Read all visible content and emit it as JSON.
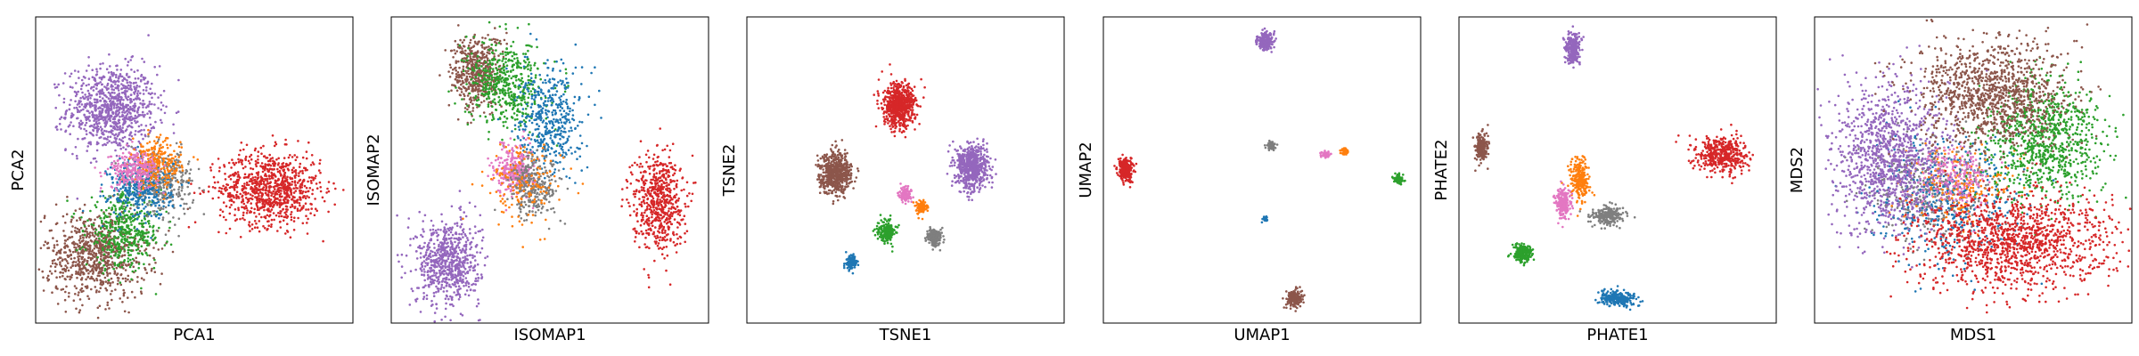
{
  "figure": {
    "type": "scatter-grid",
    "note_colors": "tab10"
  },
  "cluster_colors": {
    "blue": "#1f77b4",
    "orange": "#ff7f0e",
    "green": "#2ca02c",
    "red": "#d62728",
    "purple": "#9467bd",
    "brown": "#8c564b",
    "pink": "#e377c2",
    "gray": "#7f7f7f"
  },
  "chart_data": [
    {
      "type": "scatter",
      "title": "",
      "xlabel": "PCA1",
      "ylabel": "PCA2",
      "xlim": [
        0,
        1
      ],
      "ylim": [
        0,
        1
      ],
      "ticks": "none",
      "series": [
        {
          "color_key": "purple",
          "clusters": [
            {
              "cx": 0.24,
              "cy": 0.7,
              "sx": 0.07,
              "sy": 0.07,
              "n": 900
            }
          ]
        },
        {
          "color_key": "red",
          "clusters": [
            {
              "cx": 0.74,
              "cy": 0.44,
              "sx": 0.08,
              "sy": 0.06,
              "n": 900
            }
          ]
        },
        {
          "color_key": "brown",
          "clusters": [
            {
              "cx": 0.19,
              "cy": 0.22,
              "sx": 0.08,
              "sy": 0.07,
              "n": 800
            }
          ]
        },
        {
          "color_key": "green",
          "clusters": [
            {
              "cx": 0.28,
              "cy": 0.3,
              "sx": 0.06,
              "sy": 0.06,
              "n": 450
            }
          ]
        },
        {
          "color_key": "gray",
          "clusters": [
            {
              "cx": 0.4,
              "cy": 0.46,
              "sx": 0.05,
              "sy": 0.05,
              "n": 350
            }
          ]
        },
        {
          "color_key": "blue",
          "clusters": [
            {
              "cx": 0.33,
              "cy": 0.44,
              "sx": 0.05,
              "sy": 0.05,
              "n": 350
            }
          ]
        },
        {
          "color_key": "orange",
          "clusters": [
            {
              "cx": 0.38,
              "cy": 0.52,
              "sx": 0.04,
              "sy": 0.04,
              "n": 250
            }
          ]
        },
        {
          "color_key": "pink",
          "clusters": [
            {
              "cx": 0.31,
              "cy": 0.5,
              "sx": 0.04,
              "sy": 0.03,
              "n": 250
            }
          ]
        }
      ]
    },
    {
      "type": "scatter",
      "title": "",
      "xlabel": "ISOMAP1",
      "ylabel": "ISOMAP2",
      "xlim": [
        0,
        1
      ],
      "ylim": [
        0,
        1
      ],
      "ticks": "none",
      "series": [
        {
          "color_key": "purple",
          "clusters": [
            {
              "cx": 0.18,
              "cy": 0.2,
              "sx": 0.05,
              "sy": 0.07,
              "n": 700
            }
          ]
        },
        {
          "color_key": "red",
          "clusters": [
            {
              "cx": 0.84,
              "cy": 0.4,
              "sx": 0.04,
              "sy": 0.08,
              "n": 600
            }
          ]
        },
        {
          "color_key": "brown",
          "clusters": [
            {
              "cx": 0.27,
              "cy": 0.82,
              "sx": 0.04,
              "sy": 0.06,
              "n": 500
            }
          ]
        },
        {
          "color_key": "green",
          "clusters": [
            {
              "cx": 0.36,
              "cy": 0.78,
              "sx": 0.06,
              "sy": 0.07,
              "n": 500
            }
          ]
        },
        {
          "color_key": "blue",
          "clusters": [
            {
              "cx": 0.5,
              "cy": 0.66,
              "sx": 0.05,
              "sy": 0.09,
              "n": 450
            }
          ]
        },
        {
          "color_key": "pink",
          "clusters": [
            {
              "cx": 0.39,
              "cy": 0.5,
              "sx": 0.03,
              "sy": 0.04,
              "n": 300
            }
          ]
        },
        {
          "color_key": "gray",
          "clusters": [
            {
              "cx": 0.45,
              "cy": 0.45,
              "sx": 0.04,
              "sy": 0.05,
              "n": 300
            }
          ]
        },
        {
          "color_key": "orange",
          "clusters": [
            {
              "cx": 0.42,
              "cy": 0.45,
              "sx": 0.06,
              "sy": 0.07,
              "n": 150
            }
          ]
        }
      ]
    },
    {
      "type": "scatter",
      "title": "",
      "xlabel": "TSNE1",
      "ylabel": "TSNE2",
      "xlim": [
        0,
        1
      ],
      "ylim": [
        0,
        1
      ],
      "ticks": "none",
      "series": [
        {
          "color_key": "red",
          "clusters": [
            {
              "cx": 0.48,
              "cy": 0.71,
              "sx": 0.025,
              "sy": 0.035,
              "n": 700
            }
          ]
        },
        {
          "color_key": "brown",
          "clusters": [
            {
              "cx": 0.28,
              "cy": 0.49,
              "sx": 0.025,
              "sy": 0.033,
              "n": 600
            }
          ]
        },
        {
          "color_key": "purple",
          "clusters": [
            {
              "cx": 0.71,
              "cy": 0.51,
              "sx": 0.025,
              "sy": 0.035,
              "n": 650
            }
          ]
        },
        {
          "color_key": "pink",
          "clusters": [
            {
              "cx": 0.5,
              "cy": 0.42,
              "sx": 0.01,
              "sy": 0.012,
              "n": 120
            }
          ]
        },
        {
          "color_key": "orange",
          "clusters": [
            {
              "cx": 0.55,
              "cy": 0.38,
              "sx": 0.008,
              "sy": 0.01,
              "n": 90
            }
          ]
        },
        {
          "color_key": "green",
          "clusters": [
            {
              "cx": 0.44,
              "cy": 0.3,
              "sx": 0.014,
              "sy": 0.018,
              "n": 200
            }
          ]
        },
        {
          "color_key": "gray",
          "clusters": [
            {
              "cx": 0.59,
              "cy": 0.28,
              "sx": 0.012,
              "sy": 0.014,
              "n": 180
            }
          ]
        },
        {
          "color_key": "blue",
          "clusters": [
            {
              "cx": 0.33,
              "cy": 0.2,
              "sx": 0.009,
              "sy": 0.011,
              "n": 120
            }
          ]
        }
      ]
    },
    {
      "type": "scatter",
      "title": "",
      "xlabel": "UMAP1",
      "ylabel": "UMAP2",
      "xlim": [
        0,
        1
      ],
      "ylim": [
        0,
        1
      ],
      "ticks": "none",
      "series": [
        {
          "color_key": "purple",
          "clusters": [
            {
              "cx": 0.51,
              "cy": 0.92,
              "sx": 0.012,
              "sy": 0.014,
              "n": 220
            }
          ]
        },
        {
          "color_key": "red",
          "clusters": [
            {
              "cx": 0.07,
              "cy": 0.5,
              "sx": 0.012,
              "sy": 0.018,
              "n": 250
            }
          ]
        },
        {
          "color_key": "gray",
          "clusters": [
            {
              "cx": 0.53,
              "cy": 0.58,
              "sx": 0.006,
              "sy": 0.007,
              "n": 60
            }
          ]
        },
        {
          "color_key": "pink",
          "clusters": [
            {
              "cx": 0.7,
              "cy": 0.55,
              "sx": 0.007,
              "sy": 0.005,
              "n": 50
            }
          ]
        },
        {
          "color_key": "orange",
          "clusters": [
            {
              "cx": 0.76,
              "cy": 0.56,
              "sx": 0.006,
              "sy": 0.005,
              "n": 50
            }
          ]
        },
        {
          "color_key": "green",
          "clusters": [
            {
              "cx": 0.93,
              "cy": 0.47,
              "sx": 0.008,
              "sy": 0.007,
              "n": 80
            }
          ]
        },
        {
          "color_key": "blue",
          "clusters": [
            {
              "cx": 0.51,
              "cy": 0.34,
              "sx": 0.004,
              "sy": 0.004,
              "n": 30
            }
          ]
        },
        {
          "color_key": "brown",
          "clusters": [
            {
              "cx": 0.6,
              "cy": 0.08,
              "sx": 0.012,
              "sy": 0.014,
              "n": 200
            }
          ]
        }
      ]
    },
    {
      "type": "scatter",
      "title": "",
      "xlabel": "PHATE1",
      "ylabel": "PHATE2",
      "xlim": [
        0,
        1
      ],
      "ylim": [
        0,
        1
      ],
      "ticks": "none",
      "series": [
        {
          "color_key": "purple",
          "clusters": [
            {
              "cx": 0.36,
              "cy": 0.9,
              "sx": 0.012,
              "sy": 0.025,
              "n": 250
            }
          ]
        },
        {
          "color_key": "red",
          "clusters": [
            {
              "cx": 0.83,
              "cy": 0.55,
              "sx": 0.04,
              "sy": 0.03,
              "n": 450
            }
          ]
        },
        {
          "color_key": "brown",
          "clusters": [
            {
              "cx": 0.07,
              "cy": 0.57,
              "sx": 0.01,
              "sy": 0.025,
              "n": 200
            }
          ]
        },
        {
          "color_key": "orange",
          "clusters": [
            {
              "cx": 0.38,
              "cy": 0.47,
              "sx": 0.015,
              "sy": 0.035,
              "n": 250
            }
          ]
        },
        {
          "color_key": "pink",
          "clusters": [
            {
              "cx": 0.33,
              "cy": 0.39,
              "sx": 0.012,
              "sy": 0.025,
              "n": 220
            }
          ]
        },
        {
          "color_key": "gray",
          "clusters": [
            {
              "cx": 0.47,
              "cy": 0.35,
              "sx": 0.025,
              "sy": 0.015,
              "n": 250
            }
          ]
        },
        {
          "color_key": "green",
          "clusters": [
            {
              "cx": 0.2,
              "cy": 0.23,
              "sx": 0.015,
              "sy": 0.015,
              "n": 220
            }
          ]
        },
        {
          "color_key": "blue",
          "clusters": [
            {
              "cx": 0.5,
              "cy": 0.08,
              "sx": 0.03,
              "sy": 0.012,
              "n": 250
            }
          ]
        }
      ]
    },
    {
      "type": "scatter",
      "title": "",
      "xlabel": "MDS1",
      "ylabel": "MDS2",
      "xlim": [
        0,
        1
      ],
      "ylim": [
        0,
        1
      ],
      "ticks": "none",
      "series": [
        {
          "color_key": "gray",
          "clusters": [
            {
              "cx": 0.38,
              "cy": 0.43,
              "sx": 0.1,
              "sy": 0.08,
              "n": 400
            }
          ]
        },
        {
          "color_key": "blue",
          "clusters": [
            {
              "cx": 0.42,
              "cy": 0.4,
              "sx": 0.12,
              "sy": 0.1,
              "n": 400
            }
          ]
        },
        {
          "color_key": "orange",
          "clusters": [
            {
              "cx": 0.45,
              "cy": 0.45,
              "sx": 0.08,
              "sy": 0.06,
              "n": 200
            }
          ]
        },
        {
          "color_key": "pink",
          "clusters": [
            {
              "cx": 0.44,
              "cy": 0.48,
              "sx": 0.06,
              "sy": 0.05,
              "n": 200
            }
          ]
        },
        {
          "color_key": "purple",
          "clusters": [
            {
              "cx": 0.24,
              "cy": 0.54,
              "sx": 0.09,
              "sy": 0.12,
              "n": 1100
            }
          ]
        },
        {
          "color_key": "green",
          "clusters": [
            {
              "cx": 0.72,
              "cy": 0.6,
              "sx": 0.09,
              "sy": 0.1,
              "n": 900
            }
          ]
        },
        {
          "color_key": "brown",
          "clusters": [
            {
              "cx": 0.56,
              "cy": 0.75,
              "sx": 0.12,
              "sy": 0.09,
              "n": 1100
            }
          ]
        },
        {
          "color_key": "red",
          "clusters": [
            {
              "cx": 0.62,
              "cy": 0.26,
              "sx": 0.15,
              "sy": 0.08,
              "n": 1300
            }
          ]
        }
      ]
    }
  ]
}
